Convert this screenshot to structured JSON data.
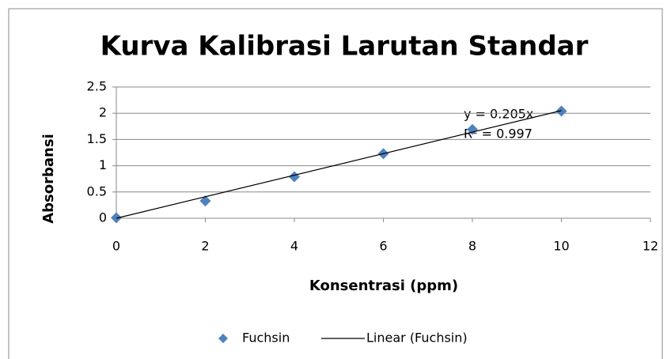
{
  "chart_data": {
    "type": "scatter",
    "title": "Kurva Kalibrasi Larutan Standar",
    "xlabel": "Konsentrasi (ppm)",
    "ylabel": "Absorbansi",
    "series": [
      {
        "name": "Fuchsin",
        "type": "scatter",
        "marker": "diamond",
        "color": "#4f81bd",
        "x": [
          0,
          2,
          4,
          6,
          8,
          10
        ],
        "values": [
          0.01,
          0.33,
          0.79,
          1.23,
          1.69,
          2.04
        ]
      },
      {
        "name": "Linear (Fuchsin)",
        "type": "line",
        "color": "#000000",
        "x": [
          0,
          10
        ],
        "values": [
          0,
          2.05
        ]
      }
    ],
    "annotations": [
      "y = 0.205x",
      "R² = 0.997"
    ],
    "xlim": [
      0,
      12
    ],
    "xticks": [
      0,
      2,
      4,
      6,
      8,
      10,
      12
    ],
    "ylim": [
      0,
      2.5
    ],
    "yticks": [
      0,
      0.5,
      1,
      1.5,
      2,
      2.5
    ],
    "grid": true,
    "legend": "bottom"
  }
}
